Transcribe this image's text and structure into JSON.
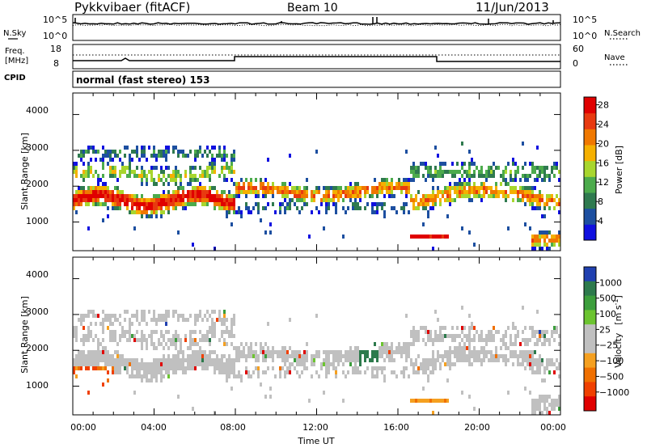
{
  "header": {
    "station": "Pykkvibaer (fitACF)",
    "beam": "Beam 10",
    "date": "11/Jun/2013"
  },
  "summary": {
    "nsky_label": "N.Sky",
    "nsky_ticks": [
      "10^5",
      "10^0"
    ],
    "nsearch_label": "N.Search",
    "nsearch_ticks": [
      "10^5",
      "10^0"
    ],
    "freq_label_1": "Freq.",
    "freq_label_2": "[MHz]",
    "freq_ticks": [
      "18",
      "8"
    ],
    "nave_label": "Nave",
    "nave_ticks": [
      "60",
      "0"
    ],
    "cpid_label": "CPID",
    "cpid_text": "normal (fast stereo) 153"
  },
  "colors": {
    "power_scale": [
      "#1010e0",
      "#1d4fa0",
      "#2f7a4f",
      "#4cab4c",
      "#a8d62e",
      "#f5b000",
      "#f07800",
      "#e83a10",
      "#e00000"
    ],
    "velocity_scale": [
      "#2040b0",
      "#2d7a4c",
      "#3c9e3c",
      "#6cc430",
      "#c0c0c0",
      "#c0c0c0",
      "#f5a020",
      "#f07000",
      "#f04000",
      "#e00000"
    ],
    "ground_scatter": "#c0c0c0"
  },
  "chart_data": [
    {
      "type": "heatmap",
      "name": "power-panel",
      "ylabel": "Slant Range [km]",
      "yticks": [
        "1000",
        "2000",
        "3000",
        "4000"
      ],
      "ylim": [
        200,
        4600
      ],
      "xlim": [
        0,
        24
      ],
      "colorbar_label": "Power [dB]",
      "colorbar_ticks": [
        "4",
        "8",
        "12",
        "16",
        "20",
        "24",
        "28"
      ],
      "colorbar_range": [
        0,
        30
      ]
    },
    {
      "type": "heatmap",
      "name": "velocity-panel",
      "ylabel": "Slant Range [km]",
      "yticks": [
        "1000",
        "2000",
        "3000",
        "4000"
      ],
      "ylim": [
        200,
        4600
      ],
      "xlim": [
        0,
        24
      ],
      "xlabel": "Time UT",
      "xticks": [
        "00:00",
        "04:00",
        "08:00",
        "12:00",
        "16:00",
        "20:00",
        "00:00"
      ],
      "colorbar_label_main": "Velocity",
      "colorbar_label_units": "[m s",
      "colorbar_label_exp": "-1",
      "colorbar_label_close": "]",
      "colorbar_ticks": [
        "1000",
        "500",
        "100",
        "25",
        "−25",
        "−100",
        "−500",
        "−1000"
      ]
    }
  ]
}
